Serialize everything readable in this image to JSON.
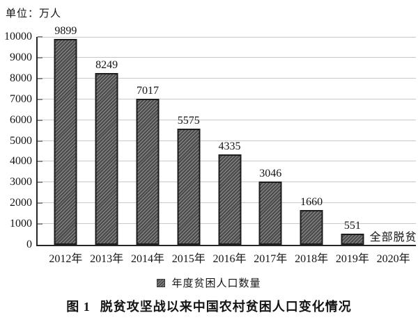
{
  "chart_data": {
    "type": "bar",
    "unit_label": "单位：万人",
    "categories": [
      "2012年",
      "2013年",
      "2014年",
      "2015年",
      "2016年",
      "2017年",
      "2018年",
      "2019年",
      "2020年"
    ],
    "values": [
      9899,
      8249,
      7017,
      5575,
      4335,
      3046,
      1660,
      551,
      null
    ],
    "final_year_annotation": "全部脱贫",
    "legend_label": "年度贫困人口数量",
    "legend_position": "bottom",
    "ylim": [
      0,
      10000
    ],
    "ytick_interval": 1000,
    "yticks": [
      0,
      1000,
      2000,
      3000,
      4000,
      5000,
      6000,
      7000,
      8000,
      9000,
      10000
    ],
    "grid": true,
    "colors": {
      "bar_hatch_dark": "#4d4d4d",
      "bar_hatch_light": "#8f8f8f",
      "bar_border": "#1c1c1c",
      "grid": "#c8c8c8",
      "axis": "#262626",
      "text": "#141414"
    }
  },
  "caption": {
    "figure_label": "图 1",
    "title": "脱贫攻坚战以来中国农村贫困人口变化情况"
  }
}
